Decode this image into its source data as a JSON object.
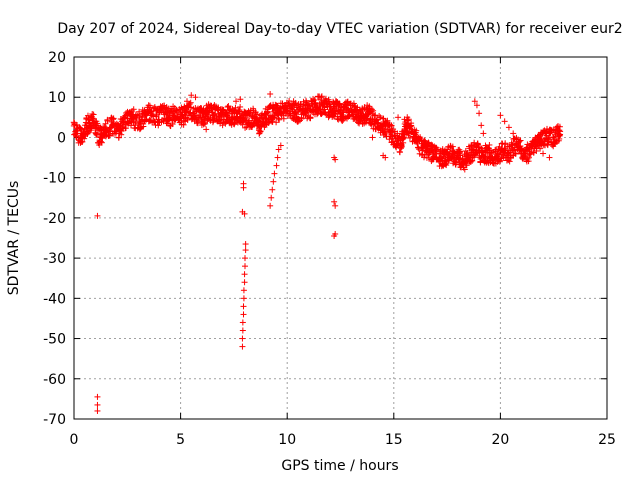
{
  "chart_data": {
    "type": "scatter",
    "title": "Day 207 of 2024, Sidereal Day-to-day VTEC variation (SDTVAR) for receiver eur2",
    "xlabel": "GPS time / hours",
    "ylabel": "SDTVAR / TECUs",
    "xlim": [
      0,
      25
    ],
    "ylim": [
      -70,
      20
    ],
    "xticks": [
      0,
      5,
      10,
      15,
      20,
      25
    ],
    "yticks": [
      -70,
      -60,
      -50,
      -40,
      -30,
      -20,
      -10,
      0,
      10,
      20
    ],
    "grid": true,
    "marker": "+",
    "series": [
      {
        "name": "SDTVAR",
        "color": "#ff0000",
        "trend": {
          "x": [
            0.0,
            0.3,
            0.6,
            0.9,
            1.2,
            1.5,
            1.8,
            2.1,
            2.4,
            2.7,
            3.0,
            3.3,
            3.6,
            3.9,
            4.2,
            4.5,
            4.8,
            5.1,
            5.4,
            5.7,
            6.0,
            6.3,
            6.6,
            6.9,
            7.2,
            7.5,
            7.8,
            8.1,
            8.4,
            8.7,
            9.0,
            9.3,
            9.6,
            9.9,
            10.2,
            10.5,
            10.8,
            11.1,
            11.4,
            11.7,
            12.0,
            12.3,
            12.6,
            12.9,
            13.2,
            13.5,
            13.8,
            14.1,
            14.4,
            14.7,
            15.0,
            15.3,
            15.6,
            15.9,
            16.2,
            16.5,
            16.8,
            17.1,
            17.4,
            17.7,
            18.0,
            18.3,
            18.6,
            18.9,
            19.2,
            19.5,
            19.8,
            20.1,
            20.4,
            20.7,
            21.0,
            21.3,
            21.6,
            21.9,
            22.2,
            22.5,
            22.8
          ],
          "y": [
            2,
            0,
            3,
            4,
            0,
            2,
            3,
            2,
            4,
            5,
            4,
            5,
            6,
            5,
            6,
            5,
            6,
            5,
            7,
            6,
            5,
            6,
            6,
            5,
            6,
            5,
            6,
            4,
            5,
            3,
            5,
            6,
            6,
            7,
            7,
            6,
            7,
            7,
            8,
            8,
            7,
            7,
            6,
            7,
            6,
            5,
            6,
            4,
            3,
            2,
            0,
            -2,
            3,
            1,
            -2,
            -3,
            -4,
            -5,
            -5,
            -4,
            -5,
            -6,
            -4,
            -3,
            -5,
            -4,
            -5,
            -3,
            -4,
            -2,
            -3,
            -4,
            -2,
            -1,
            0,
            0,
            1
          ]
        },
        "extra_points": [
          {
            "x": 0.3,
            "y": -1
          },
          {
            "x": 0.8,
            "y": 5
          },
          {
            "x": 1.1,
            "y": -19.5
          },
          {
            "x": 1.1,
            "y": -64.5
          },
          {
            "x": 1.1,
            "y": -66.5
          },
          {
            "x": 1.1,
            "y": -68
          },
          {
            "x": 2.8,
            "y": 7
          },
          {
            "x": 3.5,
            "y": 8
          },
          {
            "x": 5.3,
            "y": 9
          },
          {
            "x": 5.5,
            "y": 10.5
          },
          {
            "x": 5.7,
            "y": 10
          },
          {
            "x": 6.2,
            "y": 2
          },
          {
            "x": 7.6,
            "y": 9
          },
          {
            "x": 7.8,
            "y": 9.5
          },
          {
            "x": 7.95,
            "y": -11.5
          },
          {
            "x": 7.95,
            "y": -12.5
          },
          {
            "x": 7.9,
            "y": -18.5
          },
          {
            "x": 8.0,
            "y": -19
          },
          {
            "x": 7.9,
            "y": -52
          },
          {
            "x": 7.9,
            "y": -50
          },
          {
            "x": 7.92,
            "y": -48
          },
          {
            "x": 7.92,
            "y": -46
          },
          {
            "x": 7.95,
            "y": -44
          },
          {
            "x": 7.95,
            "y": -42
          },
          {
            "x": 7.97,
            "y": -40
          },
          {
            "x": 7.97,
            "y": -38
          },
          {
            "x": 8.0,
            "y": -36
          },
          {
            "x": 8.0,
            "y": -34
          },
          {
            "x": 8.02,
            "y": -32
          },
          {
            "x": 8.02,
            "y": -30
          },
          {
            "x": 8.05,
            "y": -28
          },
          {
            "x": 8.05,
            "y": -26.5
          },
          {
            "x": 9.2,
            "y": -17
          },
          {
            "x": 9.25,
            "y": -15
          },
          {
            "x": 9.3,
            "y": -13
          },
          {
            "x": 9.35,
            "y": -11
          },
          {
            "x": 9.4,
            "y": -9
          },
          {
            "x": 9.5,
            "y": -7
          },
          {
            "x": 9.55,
            "y": -5
          },
          {
            "x": 9.6,
            "y": -3
          },
          {
            "x": 9.7,
            "y": -2
          },
          {
            "x": 9.2,
            "y": 10.8
          },
          {
            "x": 9.5,
            "y": 6
          },
          {
            "x": 10.0,
            "y": 8
          },
          {
            "x": 10.3,
            "y": 9
          },
          {
            "x": 12.2,
            "y": -5
          },
          {
            "x": 12.25,
            "y": -5.5
          },
          {
            "x": 12.2,
            "y": -16
          },
          {
            "x": 12.25,
            "y": -17
          },
          {
            "x": 12.2,
            "y": -24.5
          },
          {
            "x": 12.25,
            "y": -24
          },
          {
            "x": 12.3,
            "y": 9
          },
          {
            "x": 13.0,
            "y": 7
          },
          {
            "x": 13.5,
            "y": 5
          },
          {
            "x": 14.0,
            "y": 0
          },
          {
            "x": 14.5,
            "y": -4.5
          },
          {
            "x": 14.6,
            "y": -5
          },
          {
            "x": 15.2,
            "y": 5
          },
          {
            "x": 15.5,
            "y": 4.5
          },
          {
            "x": 15.7,
            "y": 3
          },
          {
            "x": 18.8,
            "y": 9
          },
          {
            "x": 18.9,
            "y": 8
          },
          {
            "x": 19.0,
            "y": 6
          },
          {
            "x": 19.1,
            "y": 3
          },
          {
            "x": 19.2,
            "y": 1
          },
          {
            "x": 19.3,
            "y": -2
          },
          {
            "x": 19.8,
            "y": -3
          },
          {
            "x": 20.0,
            "y": 5.5
          },
          {
            "x": 20.2,
            "y": 4
          },
          {
            "x": 20.4,
            "y": 2.5
          },
          {
            "x": 20.6,
            "y": 1
          },
          {
            "x": 21.5,
            "y": -1
          },
          {
            "x": 22.0,
            "y": -4
          },
          {
            "x": 22.3,
            "y": -5
          },
          {
            "x": 22.5,
            "y": 2
          },
          {
            "x": 22.8,
            "y": 1.5
          }
        ]
      }
    ]
  }
}
